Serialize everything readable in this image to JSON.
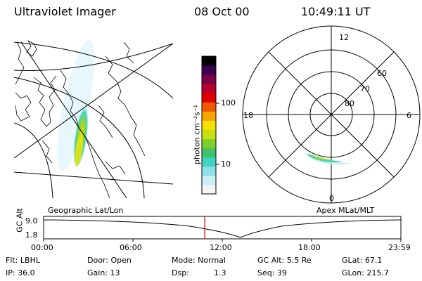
{
  "header": {
    "title": "Ultraviolet Imager",
    "date": "08 Oct 00",
    "time": "10:49:11 UT"
  },
  "colorbar": {
    "label": "photon cm⁻²s⁻¹",
    "ticks": [
      "100",
      "10"
    ],
    "colors": [
      "#f4f4f4",
      "#c9eef6",
      "#8ee0e8",
      "#3fd3c0",
      "#3fc06a",
      "#7fcf2a",
      "#c9df12",
      "#f6e000",
      "#f6a400",
      "#ef5a00",
      "#e00000",
      "#b8002a",
      "#7a0048",
      "#3a0050",
      "#000000"
    ]
  },
  "geo_panel": {
    "label": "Geographic Lat/Lon"
  },
  "polar_panel": {
    "label": "Apex MLat/MLT",
    "mlt_labels": [
      "12",
      "18",
      "6",
      "0"
    ],
    "lat_labels": [
      "60",
      "70",
      "80"
    ]
  },
  "timeline": {
    "axis_label": "GC Alt",
    "y_ticks": [
      "9.0",
      "1.8"
    ],
    "x_ticks": [
      "00:00",
      "06:00",
      "12:00",
      "18:00",
      "23:59"
    ],
    "current_time_hours": 10.82
  },
  "footer": {
    "filter": "Flt: LBHL",
    "ip": "IP: 36.0",
    "door": "Door: Open",
    "gain": "Gain: 13",
    "mode": "Mode: Normal",
    "dsp_label": "Dsp:",
    "dsp_value": "1.3",
    "gc_alt": "GC Alt: 5.5 Re",
    "seq": "Seq: 39",
    "glat": "GLat: 67.1",
    "glon": "GLon: 215.7"
  }
}
